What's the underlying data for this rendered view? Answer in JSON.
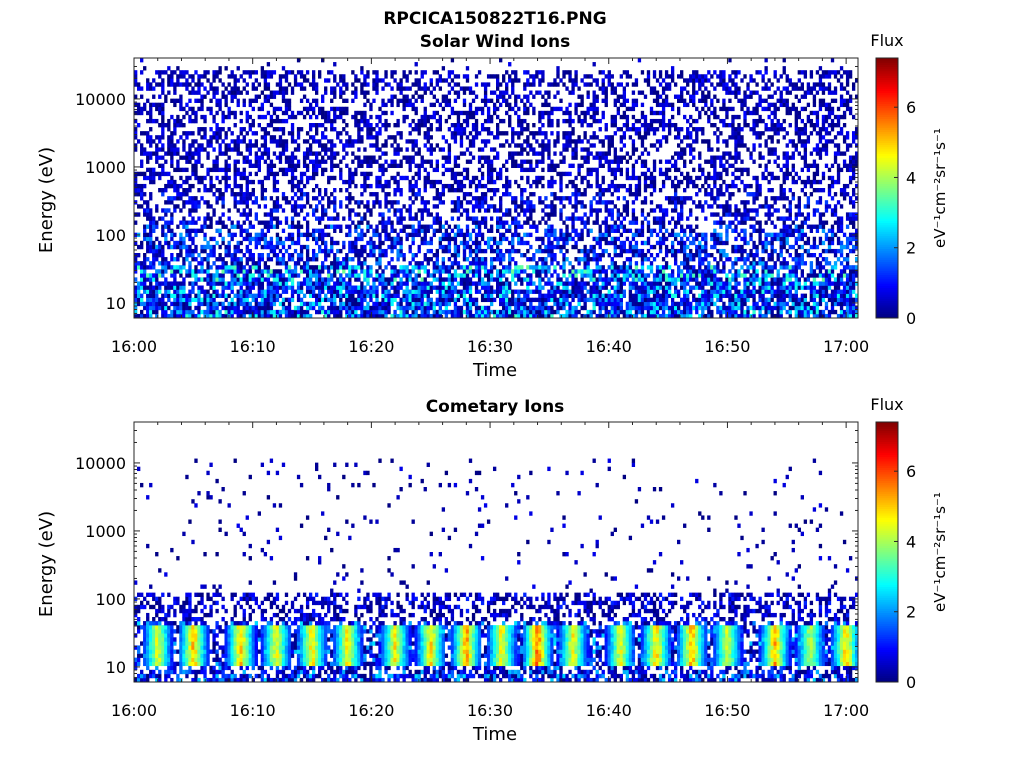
{
  "figure": {
    "title": "RPCICA150822T16.PNG"
  },
  "colormap": "jet",
  "chart_data": [
    {
      "type": "heatmap",
      "title": "Solar Wind Ions",
      "xlabel": "Time",
      "ylabel": "Energy (eV)",
      "x_ticks": [
        "16:00",
        "16:10",
        "16:20",
        "16:30",
        "16:40",
        "16:50",
        "17:00"
      ],
      "x_range": [
        "16:00",
        "17:01"
      ],
      "y_scale": "log",
      "y_ticks": [
        "10",
        "100",
        "1000",
        "10000"
      ],
      "y_range": [
        6,
        40000
      ],
      "colorbar": {
        "title": "Flux",
        "label": "eV⁻¹cm⁻²sr⁻¹s⁻¹",
        "ticks": [
          "0",
          "2",
          "4",
          "6"
        ],
        "range": [
          0,
          7.4
        ]
      },
      "bands": [
        {
          "energy_range": [
            6,
            8
          ],
          "flux_range": [
            0,
            3.2
          ],
          "fill": 0.85
        },
        {
          "energy_range": [
            8,
            20
          ],
          "flux_range": [
            0,
            3.0
          ],
          "fill": 0.8
        },
        {
          "energy_range": [
            20,
            35
          ],
          "flux_range": [
            0,
            3.6
          ],
          "fill": 0.75
        },
        {
          "energy_range": [
            35,
            150
          ],
          "flux_range": [
            0,
            2.2
          ],
          "fill": 0.55
        },
        {
          "energy_range": [
            150,
            400
          ],
          "flux_range": [
            0,
            1.4
          ],
          "fill": 0.45
        },
        {
          "energy_range": [
            400,
            25000
          ],
          "flux_range": [
            0,
            1.0
          ],
          "fill": 0.45
        },
        {
          "energy_range": [
            25000,
            40000
          ],
          "flux_range": [
            0,
            0.8
          ],
          "fill": 0.05
        }
      ],
      "enhancements": []
    },
    {
      "type": "heatmap",
      "title": "Cometary Ions",
      "xlabel": "Time",
      "ylabel": "Energy (eV)",
      "x_ticks": [
        "16:00",
        "16:10",
        "16:20",
        "16:30",
        "16:40",
        "16:50",
        "17:00"
      ],
      "x_range": [
        "16:00",
        "17:01"
      ],
      "y_scale": "log",
      "y_ticks": [
        "10",
        "100",
        "1000",
        "10000"
      ],
      "y_range": [
        6,
        40000
      ],
      "colorbar": {
        "title": "Flux",
        "label": "eV⁻¹cm⁻²sr⁻¹s⁻¹",
        "ticks": [
          "0",
          "2",
          "4",
          "6"
        ],
        "range": [
          0,
          7.4
        ]
      },
      "bands": [
        {
          "energy_range": [
            6,
            8
          ],
          "flux_range": [
            0,
            2.6
          ],
          "fill": 0.7
        },
        {
          "energy_range": [
            8,
            15
          ],
          "flux_range": [
            0,
            2.4
          ],
          "fill": 0.55
        },
        {
          "energy_range": [
            15,
            45
          ],
          "flux_range": [
            0,
            2.6
          ],
          "fill": 0.6
        },
        {
          "energy_range": [
            45,
            130
          ],
          "flux_range": [
            0,
            1.2
          ],
          "fill": 0.45
        },
        {
          "energy_range": [
            130,
            12000
          ],
          "flux_range": [
            0,
            0.8
          ],
          "fill": 0.04
        }
      ],
      "enhancements": [
        {
          "time": "16:02",
          "flux": 5.0
        },
        {
          "time": "16:05",
          "flux": 5.8
        },
        {
          "time": "16:09",
          "flux": 5.6
        },
        {
          "time": "16:12",
          "flux": 5.2
        },
        {
          "time": "16:15",
          "flux": 5.5
        },
        {
          "time": "16:18",
          "flux": 5.3
        },
        {
          "time": "16:22",
          "flux": 5.2
        },
        {
          "time": "16:25",
          "flux": 5.4
        },
        {
          "time": "16:28",
          "flux": 6.0
        },
        {
          "time": "16:31",
          "flux": 5.3
        },
        {
          "time": "16:34",
          "flux": 6.4
        },
        {
          "time": "16:37",
          "flux": 5.2
        },
        {
          "time": "16:41",
          "flux": 5.0
        },
        {
          "time": "16:44",
          "flux": 5.5
        },
        {
          "time": "16:47",
          "flux": 5.8
        },
        {
          "time": "16:50",
          "flux": 4.8
        },
        {
          "time": "16:54",
          "flux": 5.8
        },
        {
          "time": "16:57",
          "flux": 4.6
        },
        {
          "time": "17:00",
          "flux": 5.6
        }
      ]
    }
  ]
}
